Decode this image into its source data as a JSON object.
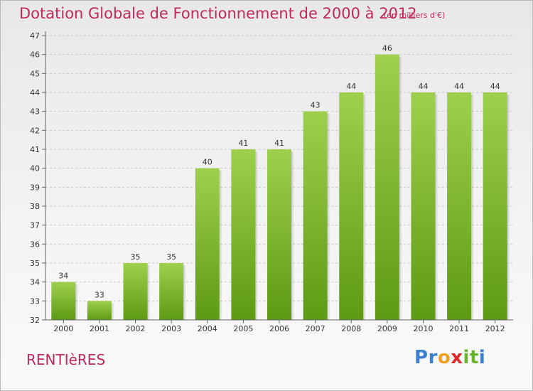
{
  "chart_data": {
    "type": "bar",
    "title": "Dotation Globale de Fonctionnement de 2000 à 2012",
    "subtitle": "(en milliers d'€)",
    "categories": [
      "2000",
      "2001",
      "2002",
      "2003",
      "2004",
      "2005",
      "2006",
      "2007",
      "2008",
      "2009",
      "2010",
      "2011",
      "2012"
    ],
    "values": [
      34,
      33,
      35,
      35,
      40,
      41,
      41,
      43,
      44,
      46,
      44,
      44,
      44
    ],
    "value_labels": [
      "34",
      "33",
      "35",
      "35",
      "40",
      "41",
      "41",
      "43",
      "44",
      "46",
      "44",
      "44",
      "44"
    ],
    "ylim": [
      32,
      47
    ],
    "yticks": [
      "32",
      "33",
      "34",
      "35",
      "36",
      "37",
      "38",
      "39",
      "40",
      "41",
      "42",
      "43",
      "44",
      "45",
      "46",
      "47"
    ],
    "grid": true,
    "xlabel": "",
    "ylabel": "",
    "bar_color_top": "#9ed04d",
    "bar_color_bottom": "#5e9a14"
  },
  "footer": {
    "city": "RENTIèRES",
    "logo": [
      "P",
      "r",
      "o",
      "x",
      "i",
      "t",
      "i"
    ]
  },
  "colors": {
    "title": "#c0295e",
    "logo": [
      "#3a7fd0",
      "#3a7fd0",
      "#f0a020",
      "#e02a2a",
      "#68b52a",
      "#68b52a",
      "#3a7fd0"
    ]
  }
}
